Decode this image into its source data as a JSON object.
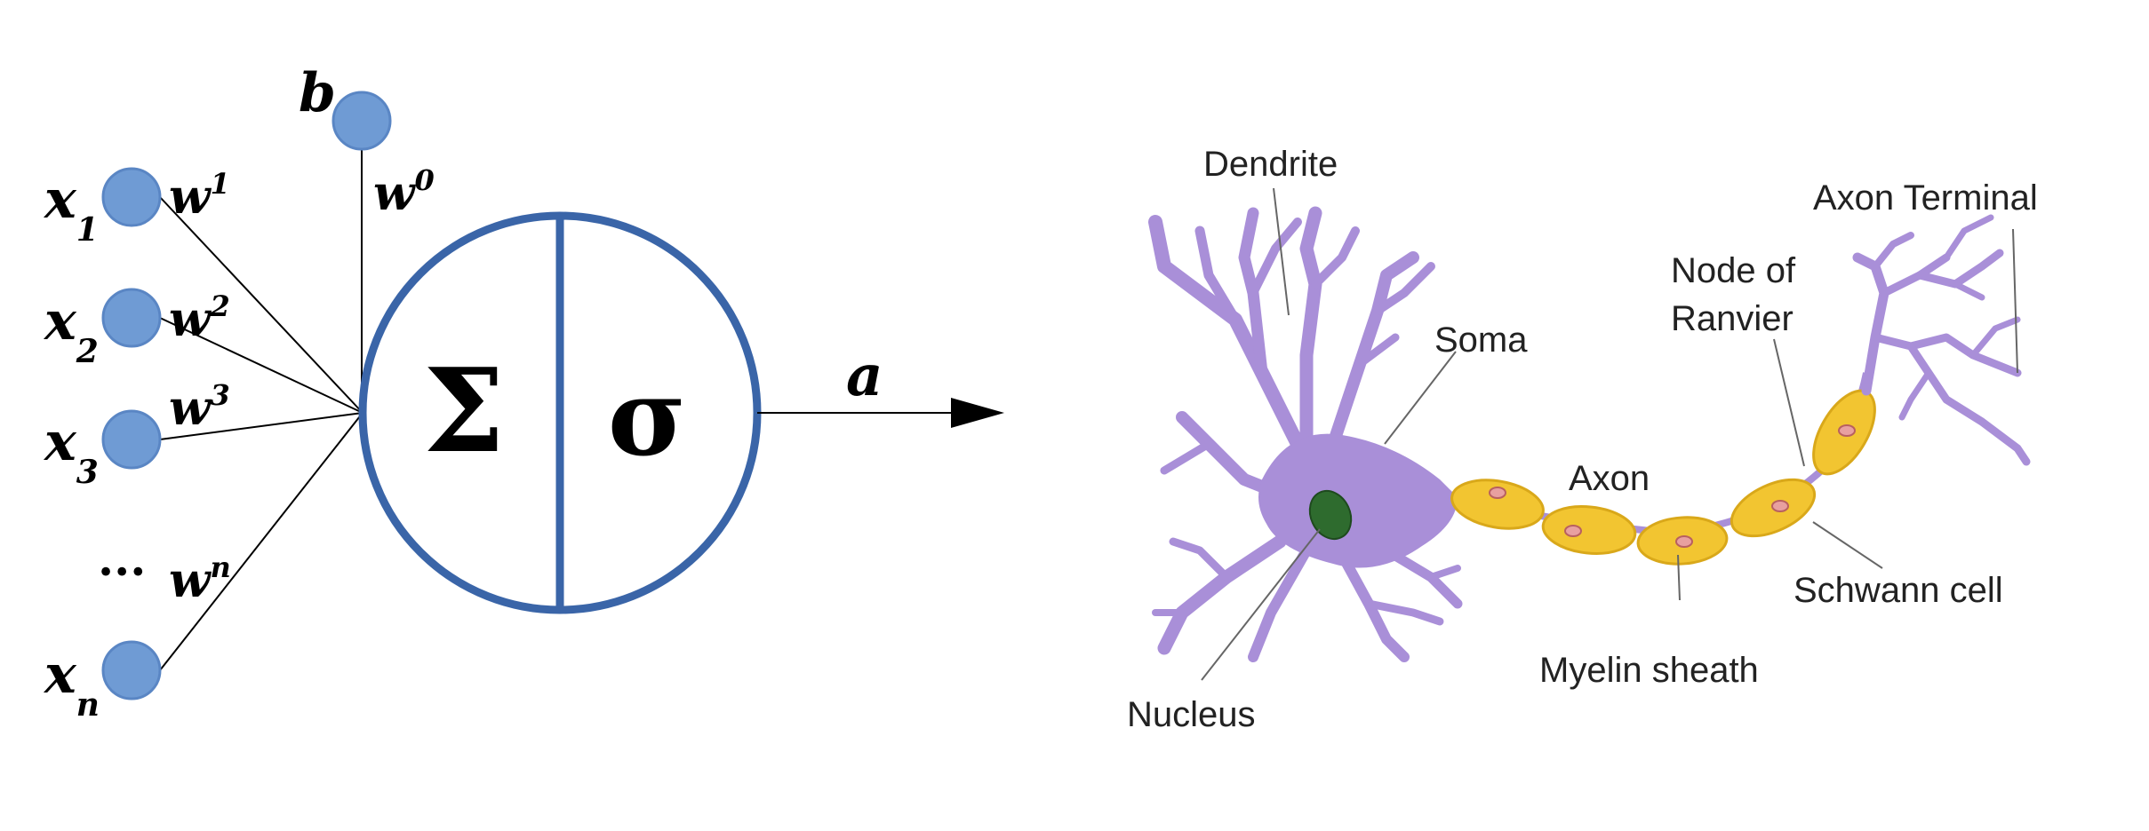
{
  "perceptron": {
    "inputs": [
      {
        "base": "x",
        "sub": "1",
        "weight": "w",
        "weight_sup": "1"
      },
      {
        "base": "x",
        "sub": "2",
        "weight": "w",
        "weight_sup": "2"
      },
      {
        "base": "x",
        "sub": "3",
        "weight": "w",
        "weight_sup": "3"
      },
      {
        "base": "x",
        "sub": "n",
        "weight": "w",
        "weight_sup": "n"
      }
    ],
    "ellipsis": "...",
    "bias": {
      "label": "b",
      "weight": "w",
      "weight_sup": "0"
    },
    "sum_symbol": "Σ",
    "activation_symbol": "σ",
    "output_label": "a",
    "colors": {
      "node_fill": "#6f9bd4",
      "node_stroke": "#5a86c4",
      "circle_stroke": "#3a65a8"
    }
  },
  "neuron": {
    "labels": {
      "dendrite": "Dendrite",
      "soma": "Soma",
      "nucleus": "Nucleus",
      "axon": "Axon",
      "myelin_sheath": "Myelin sheath",
      "node_of_ranvier_line1": "Node of",
      "node_of_ranvier_line2": "Ranvier",
      "schwann_cell": "Schwann cell",
      "axon_terminal": "Axon Terminal"
    },
    "colors": {
      "cell_body": "#a98fd8",
      "nucleus": "#2e6b2e",
      "myelin": "#f2c531",
      "myelin_stroke": "#d9a81a",
      "schwann_nucleus": "#e8a0a0"
    }
  }
}
